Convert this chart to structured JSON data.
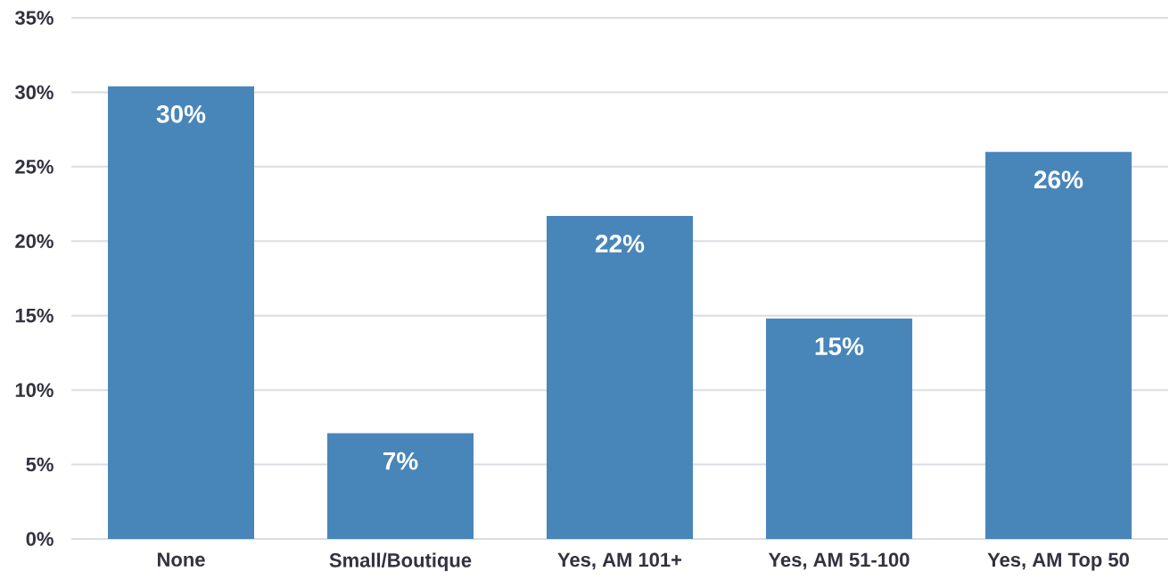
{
  "chart_data": {
    "type": "bar",
    "categories": [
      "None",
      "Small/Boutique",
      "Yes, AM 101+",
      "Yes, AM 51-100",
      "Yes, AM Top 50"
    ],
    "values": [
      30.4,
      7.1,
      21.7,
      14.8,
      26.0
    ],
    "value_labels": [
      "30%",
      "7%",
      "22%",
      "15%",
      "26%"
    ],
    "color": "#4886ba",
    "ylim": [
      0,
      35
    ],
    "yticks": [
      {
        "value": 0,
        "label": "0%"
      },
      {
        "value": 5,
        "label": "5%"
      },
      {
        "value": 10,
        "label": "10%"
      },
      {
        "value": 15,
        "label": "15%"
      },
      {
        "value": 20,
        "label": "20%"
      },
      {
        "value": 25,
        "label": "25%"
      },
      {
        "value": 30,
        "label": "30%"
      },
      {
        "value": 35,
        "label": "35%"
      }
    ],
    "grid": "y"
  }
}
